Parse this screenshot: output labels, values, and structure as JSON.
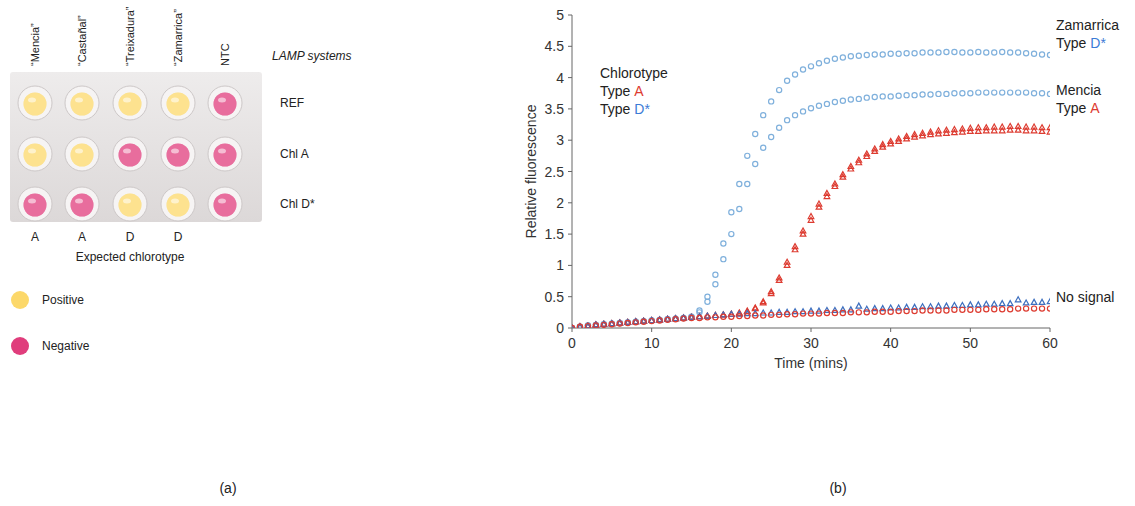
{
  "panel_labels": [
    "(a)",
    "(b)"
  ],
  "plate": {
    "columns": [
      "“Mencia”",
      "“Castañal”",
      "“Treixadura”",
      "“Zamarrica”",
      "NTC"
    ],
    "rows_title": "LAMP systems",
    "rows": [
      {
        "label": "REF",
        "results": [
          "Positive",
          "Positive",
          "Positive",
          "Positive",
          "Negative"
        ]
      },
      {
        "label": "Chl A",
        "results": [
          "Positive",
          "Positive",
          "Negative",
          "Negative",
          "Negative"
        ]
      },
      {
        "label": "Chl D*",
        "results": [
          "Negative",
          "Negative",
          "Positive",
          "Positive",
          "Negative"
        ]
      }
    ],
    "expected": [
      "A",
      "A",
      "D",
      "D",
      null
    ],
    "expected_title": "Expected chlorotype",
    "key": [
      {
        "name": "Positive",
        "color": "#fcd86a"
      },
      {
        "name": "Negative",
        "color": "#e03d7c"
      }
    ]
  },
  "chart_data": {
    "type": "scatter",
    "x_label": "Time (mins)",
    "y_label": "Relative fluorescence",
    "grid": false,
    "xlim": [
      0,
      60
    ],
    "xticks": [
      0,
      10,
      20,
      30,
      40,
      50,
      60
    ],
    "ylim": [
      0,
      5
    ],
    "yticks": [
      0,
      0.5,
      1,
      1.5,
      2,
      2.5,
      3,
      3.5,
      4,
      4.5,
      5
    ],
    "x": [
      0,
      1,
      2,
      3,
      4,
      5,
      6,
      7,
      8,
      9,
      10,
      11,
      12,
      13,
      14,
      15,
      16,
      17,
      18,
      19,
      20,
      21,
      22,
      23,
      24,
      25,
      26,
      27,
      28,
      29,
      30,
      31,
      32,
      33,
      34,
      35,
      36,
      37,
      38,
      39,
      40,
      41,
      42,
      43,
      44,
      45,
      46,
      47,
      48,
      49,
      50,
      51,
      52,
      53,
      54,
      55,
      56,
      57,
      58,
      59,
      60
    ],
    "series": [
      {
        "color": "#7fb0dc",
        "marker": "circle",
        "values": [
          0.0,
          0.02,
          0.04,
          0.05,
          0.06,
          0.07,
          0.08,
          0.09,
          0.1,
          0.11,
          0.12,
          0.13,
          0.14,
          0.15,
          0.16,
          0.18,
          0.28,
          0.5,
          0.85,
          1.35,
          1.85,
          2.3,
          2.75,
          3.1,
          3.4,
          3.62,
          3.8,
          3.95,
          4.05,
          4.13,
          4.18,
          4.23,
          4.27,
          4.3,
          4.32,
          4.34,
          4.35,
          4.36,
          4.37,
          4.37,
          4.38,
          4.38,
          4.39,
          4.39,
          4.4,
          4.4,
          4.4,
          4.41,
          4.41,
          4.4,
          4.4,
          4.41,
          4.4,
          4.4,
          4.41,
          4.4,
          4.4,
          4.39,
          4.38,
          4.37,
          4.36
        ]
      },
      {
        "color": "#7fb0dc",
        "marker": "circle",
        "values": [
          0.0,
          0.02,
          0.04,
          0.05,
          0.06,
          0.07,
          0.08,
          0.09,
          0.1,
          0.11,
          0.12,
          0.13,
          0.14,
          0.15,
          0.16,
          0.18,
          0.25,
          0.42,
          0.7,
          1.1,
          1.5,
          1.9,
          2.3,
          2.62,
          2.88,
          3.05,
          3.2,
          3.32,
          3.4,
          3.46,
          3.51,
          3.55,
          3.58,
          3.61,
          3.63,
          3.65,
          3.66,
          3.68,
          3.69,
          3.7,
          3.7,
          3.71,
          3.72,
          3.72,
          3.73,
          3.73,
          3.74,
          3.74,
          3.75,
          3.75,
          3.75,
          3.76,
          3.76,
          3.76,
          3.76,
          3.76,
          3.76,
          3.76,
          3.75,
          3.75,
          3.74
        ]
      },
      {
        "color": "#dd3b30",
        "marker": "triangle",
        "values": [
          0.0,
          0.02,
          0.03,
          0.05,
          0.06,
          0.07,
          0.08,
          0.09,
          0.1,
          0.11,
          0.12,
          0.13,
          0.14,
          0.15,
          0.16,
          0.17,
          0.18,
          0.19,
          0.2,
          0.21,
          0.22,
          0.24,
          0.27,
          0.32,
          0.42,
          0.58,
          0.8,
          1.05,
          1.3,
          1.55,
          1.78,
          1.98,
          2.15,
          2.3,
          2.45,
          2.58,
          2.68,
          2.78,
          2.86,
          2.93,
          2.98,
          3.02,
          3.06,
          3.09,
          3.11,
          3.13,
          3.15,
          3.16,
          3.17,
          3.18,
          3.19,
          3.2,
          3.2,
          3.21,
          3.21,
          3.22,
          3.22,
          3.21,
          3.21,
          3.2,
          3.2
        ]
      },
      {
        "color": "#dd3b30",
        "marker": "triangle",
        "values": [
          0.0,
          0.02,
          0.03,
          0.05,
          0.06,
          0.07,
          0.08,
          0.09,
          0.1,
          0.11,
          0.12,
          0.13,
          0.14,
          0.15,
          0.16,
          0.17,
          0.18,
          0.19,
          0.2,
          0.21,
          0.22,
          0.23,
          0.26,
          0.31,
          0.4,
          0.55,
          0.76,
          1.0,
          1.25,
          1.5,
          1.72,
          1.93,
          2.1,
          2.26,
          2.41,
          2.54,
          2.64,
          2.74,
          2.82,
          2.89,
          2.94,
          2.98,
          3.02,
          3.05,
          3.07,
          3.09,
          3.1,
          3.11,
          3.12,
          3.13,
          3.14,
          3.14,
          3.15,
          3.15,
          3.15,
          3.16,
          3.16,
          3.15,
          3.15,
          3.14,
          3.13
        ]
      },
      {
        "color": "#3d6fbf",
        "marker": "triangle",
        "values": [
          0.0,
          0.02,
          0.03,
          0.05,
          0.06,
          0.07,
          0.08,
          0.09,
          0.1,
          0.11,
          0.12,
          0.13,
          0.14,
          0.15,
          0.16,
          0.17,
          0.18,
          0.19,
          0.2,
          0.21,
          0.22,
          0.22,
          0.23,
          0.23,
          0.24,
          0.24,
          0.25,
          0.25,
          0.26,
          0.26,
          0.27,
          0.27,
          0.28,
          0.28,
          0.29,
          0.29,
          0.35,
          0.3,
          0.31,
          0.31,
          0.32,
          0.32,
          0.33,
          0.33,
          0.34,
          0.34,
          0.35,
          0.35,
          0.36,
          0.36,
          0.37,
          0.37,
          0.38,
          0.38,
          0.39,
          0.39,
          0.45,
          0.4,
          0.41,
          0.41,
          0.42
        ]
      },
      {
        "color": "#dd3b30",
        "marker": "circle",
        "values": [
          0.0,
          0.02,
          0.03,
          0.04,
          0.05,
          0.06,
          0.07,
          0.08,
          0.09,
          0.1,
          0.11,
          0.12,
          0.13,
          0.14,
          0.15,
          0.16,
          0.16,
          0.17,
          0.17,
          0.18,
          0.18,
          0.19,
          0.19,
          0.2,
          0.2,
          0.21,
          0.21,
          0.22,
          0.22,
          0.23,
          0.23,
          0.23,
          0.24,
          0.24,
          0.24,
          0.25,
          0.25,
          0.25,
          0.26,
          0.26,
          0.26,
          0.27,
          0.27,
          0.27,
          0.28,
          0.28,
          0.28,
          0.28,
          0.29,
          0.29,
          0.29,
          0.29,
          0.3,
          0.3,
          0.3,
          0.3,
          0.31,
          0.31,
          0.31,
          0.31,
          0.31
        ]
      }
    ],
    "annotations": [
      {
        "lines": [
          [
            {
              "text": "Chlorotype"
            }
          ],
          [
            {
              "text": "Type"
            },
            {
              "text": "A",
              "color": "#dd3b30"
            }
          ],
          [
            {
              "text": "Type"
            },
            {
              "text": "D*",
              "color": "#3c7bd6"
            }
          ]
        ]
      },
      {
        "lines": [
          [
            {
              "text": "Zamarrica"
            }
          ],
          [
            {
              "text": "Type"
            },
            {
              "text": "D*",
              "color": "#3c7bd6"
            }
          ]
        ]
      },
      {
        "lines": [
          [
            {
              "text": "Mencia"
            }
          ],
          [
            {
              "text": "Type"
            },
            {
              "text": "A",
              "color": "#dd3b30"
            }
          ]
        ]
      },
      {
        "lines": [
          [
            {
              "text": "No signal"
            }
          ]
        ]
      }
    ]
  }
}
